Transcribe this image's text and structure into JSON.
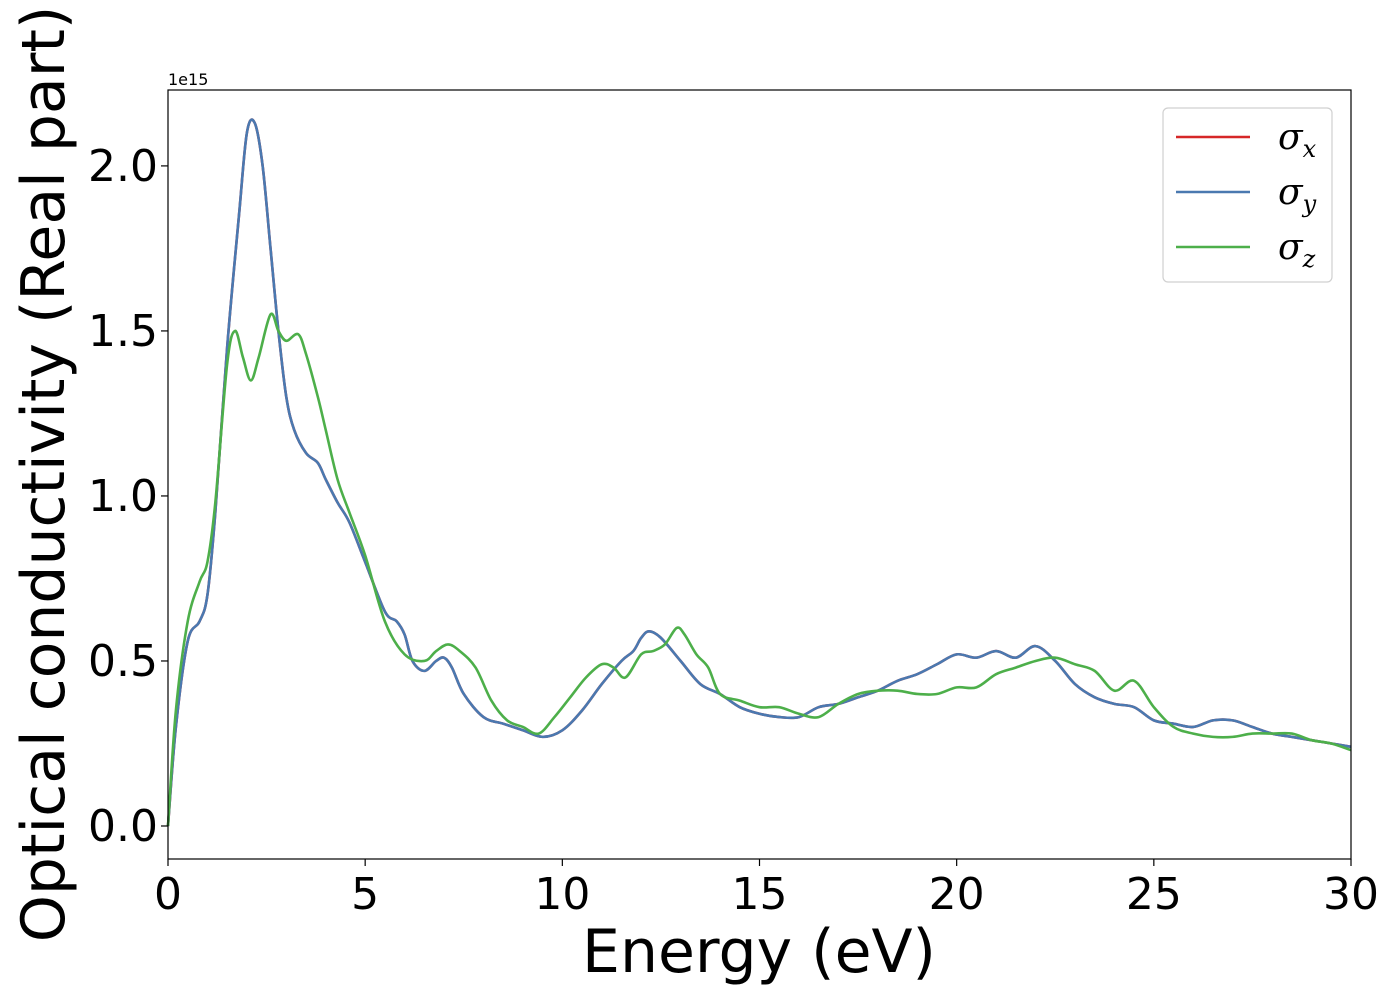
{
  "chart_data": {
    "type": "line",
    "xlabel": "Energy (eV)",
    "ylabel": "Optical conductivity (Real part)",
    "y_offset_text": "1e15",
    "xlim": [
      0,
      30
    ],
    "ylim": [
      -0.1,
      2.23
    ],
    "xticks": [
      0,
      5,
      10,
      15,
      20,
      25,
      30
    ],
    "xtick_labels": [
      "0",
      "5",
      "10",
      "15",
      "20",
      "25",
      "30"
    ],
    "yticks": [
      0.0,
      0.5,
      1.0,
      1.5,
      2.0
    ],
    "ytick_labels": [
      "0.0",
      "0.5",
      "1.0",
      "1.5",
      "2.0"
    ],
    "grid": false,
    "legend_position": "top-right",
    "series": [
      {
        "name": "σx",
        "legend_symbol": "σ",
        "legend_sub": "x",
        "color": "#d62728",
        "x": [
          0,
          0.2,
          0.5,
          0.8,
          1.0,
          1.2,
          1.5,
          1.8,
          2.0,
          2.2,
          2.4,
          2.6,
          2.8,
          3.0,
          3.2,
          3.5,
          3.8,
          4.0,
          4.3,
          4.6,
          5.0,
          5.5,
          5.8,
          6.0,
          6.2,
          6.5,
          6.8,
          7.0,
          7.2,
          7.5,
          8.0,
          8.5,
          9.0,
          9.5,
          10.0,
          10.5,
          11.0,
          11.5,
          11.8,
          12.0,
          12.2,
          12.5,
          13.0,
          13.5,
          14.0,
          14.5,
          15.0,
          15.5,
          16.0,
          16.5,
          17.0,
          17.5,
          18.0,
          18.5,
          19.0,
          19.5,
          20.0,
          20.5,
          21.0,
          21.5,
          22.0,
          22.5,
          23.0,
          23.5,
          24.0,
          24.5,
          25.0,
          25.5,
          26.0,
          26.5,
          27.0,
          27.5,
          28.0,
          28.5,
          29.0,
          29.5,
          30.0
        ],
        "y": [
          0.0,
          0.3,
          0.56,
          0.62,
          0.7,
          0.95,
          1.45,
          1.85,
          2.1,
          2.13,
          2.0,
          1.75,
          1.5,
          1.3,
          1.2,
          1.13,
          1.1,
          1.05,
          0.98,
          0.92,
          0.8,
          0.65,
          0.62,
          0.58,
          0.5,
          0.47,
          0.5,
          0.51,
          0.48,
          0.4,
          0.33,
          0.31,
          0.29,
          0.27,
          0.29,
          0.35,
          0.43,
          0.5,
          0.53,
          0.57,
          0.59,
          0.57,
          0.5,
          0.43,
          0.4,
          0.36,
          0.34,
          0.33,
          0.33,
          0.36,
          0.37,
          0.39,
          0.41,
          0.44,
          0.46,
          0.49,
          0.52,
          0.51,
          0.53,
          0.51,
          0.545,
          0.5,
          0.43,
          0.39,
          0.37,
          0.36,
          0.32,
          0.31,
          0.3,
          0.32,
          0.32,
          0.3,
          0.28,
          0.27,
          0.26,
          0.25,
          0.24
        ]
      },
      {
        "name": "σy",
        "legend_symbol": "σ",
        "legend_sub": "y",
        "color": "#4a79b0",
        "x": [
          0,
          0.2,
          0.5,
          0.8,
          1.0,
          1.2,
          1.5,
          1.8,
          2.0,
          2.2,
          2.4,
          2.6,
          2.8,
          3.0,
          3.2,
          3.5,
          3.8,
          4.0,
          4.3,
          4.6,
          5.0,
          5.5,
          5.8,
          6.0,
          6.2,
          6.5,
          6.8,
          7.0,
          7.2,
          7.5,
          8.0,
          8.5,
          9.0,
          9.5,
          10.0,
          10.5,
          11.0,
          11.5,
          11.8,
          12.0,
          12.2,
          12.5,
          13.0,
          13.5,
          14.0,
          14.5,
          15.0,
          15.5,
          16.0,
          16.5,
          17.0,
          17.5,
          18.0,
          18.5,
          19.0,
          19.5,
          20.0,
          20.5,
          21.0,
          21.5,
          22.0,
          22.5,
          23.0,
          23.5,
          24.0,
          24.5,
          25.0,
          25.5,
          26.0,
          26.5,
          27.0,
          27.5,
          28.0,
          28.5,
          29.0,
          29.5,
          30.0
        ],
        "y": [
          0.0,
          0.3,
          0.56,
          0.62,
          0.7,
          0.95,
          1.45,
          1.85,
          2.1,
          2.13,
          2.0,
          1.75,
          1.5,
          1.3,
          1.2,
          1.13,
          1.1,
          1.05,
          0.98,
          0.92,
          0.8,
          0.65,
          0.62,
          0.58,
          0.5,
          0.47,
          0.5,
          0.51,
          0.48,
          0.4,
          0.33,
          0.31,
          0.29,
          0.27,
          0.29,
          0.35,
          0.43,
          0.5,
          0.53,
          0.57,
          0.59,
          0.57,
          0.5,
          0.43,
          0.4,
          0.36,
          0.34,
          0.33,
          0.33,
          0.36,
          0.37,
          0.39,
          0.41,
          0.44,
          0.46,
          0.49,
          0.52,
          0.51,
          0.53,
          0.51,
          0.545,
          0.5,
          0.43,
          0.39,
          0.37,
          0.36,
          0.32,
          0.31,
          0.3,
          0.32,
          0.32,
          0.3,
          0.28,
          0.27,
          0.26,
          0.25,
          0.24
        ]
      },
      {
        "name": "σz",
        "legend_symbol": "σ",
        "legend_sub": "z",
        "color": "#4daf4a",
        "x": [
          0,
          0.2,
          0.5,
          0.8,
          1.0,
          1.2,
          1.5,
          1.7,
          1.9,
          2.1,
          2.3,
          2.6,
          2.8,
          3.0,
          3.3,
          3.5,
          3.8,
          4.0,
          4.3,
          4.6,
          5.0,
          5.5,
          6.0,
          6.5,
          6.8,
          7.1,
          7.4,
          7.8,
          8.2,
          8.6,
          9.0,
          9.4,
          9.8,
          10.2,
          10.6,
          11.0,
          11.3,
          11.6,
          12.0,
          12.3,
          12.6,
          12.9,
          13.1,
          13.4,
          13.7,
          14.0,
          14.5,
          15.0,
          15.5,
          16.0,
          16.5,
          17.0,
          17.5,
          18.0,
          18.5,
          19.0,
          19.5,
          20.0,
          20.5,
          21.0,
          21.5,
          22.0,
          22.5,
          23.0,
          23.5,
          24.0,
          24.5,
          25.0,
          25.5,
          26.0,
          26.5,
          27.0,
          27.5,
          28.0,
          28.5,
          29.0,
          29.5,
          30.0
        ],
        "y": [
          0.0,
          0.35,
          0.62,
          0.74,
          0.8,
          0.98,
          1.4,
          1.5,
          1.42,
          1.35,
          1.42,
          1.55,
          1.5,
          1.47,
          1.49,
          1.43,
          1.3,
          1.2,
          1.05,
          0.95,
          0.82,
          0.62,
          0.52,
          0.5,
          0.53,
          0.55,
          0.53,
          0.48,
          0.38,
          0.32,
          0.3,
          0.28,
          0.33,
          0.39,
          0.45,
          0.49,
          0.48,
          0.45,
          0.52,
          0.53,
          0.55,
          0.6,
          0.58,
          0.52,
          0.48,
          0.4,
          0.38,
          0.36,
          0.36,
          0.34,
          0.33,
          0.37,
          0.4,
          0.41,
          0.41,
          0.4,
          0.4,
          0.42,
          0.42,
          0.46,
          0.48,
          0.5,
          0.51,
          0.49,
          0.47,
          0.41,
          0.44,
          0.36,
          0.3,
          0.28,
          0.27,
          0.27,
          0.28,
          0.28,
          0.28,
          0.26,
          0.25,
          0.23
        ]
      }
    ]
  }
}
